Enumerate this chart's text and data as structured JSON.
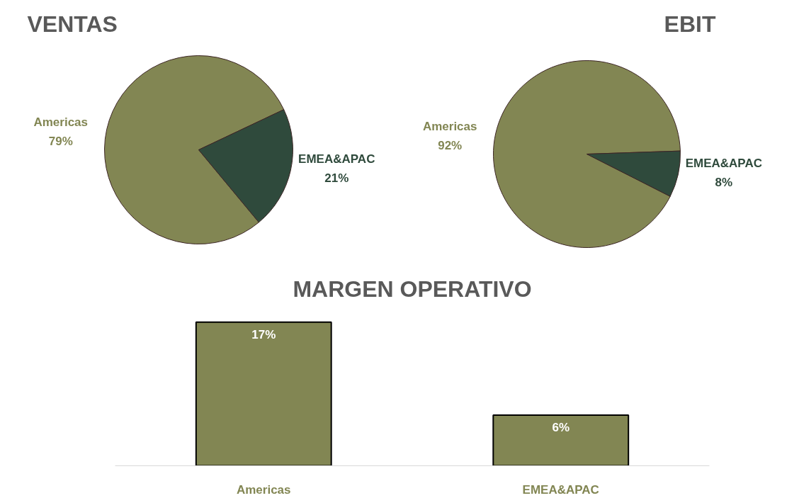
{
  "chart_data": [
    {
      "type": "pie",
      "title": "VENTAS",
      "categories": [
        "Americas",
        "EMEA&APAC"
      ],
      "values": [
        79,
        21
      ],
      "colors": [
        "#828653",
        "#2f4a3c"
      ],
      "value_labels": [
        "79%",
        "21%"
      ]
    },
    {
      "type": "pie",
      "title": "EBIT",
      "categories": [
        "Americas",
        "EMEA&APAC"
      ],
      "values": [
        92,
        8
      ],
      "colors": [
        "#828653",
        "#2f4a3c"
      ],
      "value_labels": [
        "92%",
        "8%"
      ]
    },
    {
      "type": "bar",
      "title": "MARGEN OPERATIVO",
      "categories": [
        "Americas",
        "EMEA&APAC"
      ],
      "values": [
        17,
        6
      ],
      "color": "#828653",
      "value_labels": [
        "17%",
        "6%"
      ],
      "tick_labels": "x"
    }
  ]
}
